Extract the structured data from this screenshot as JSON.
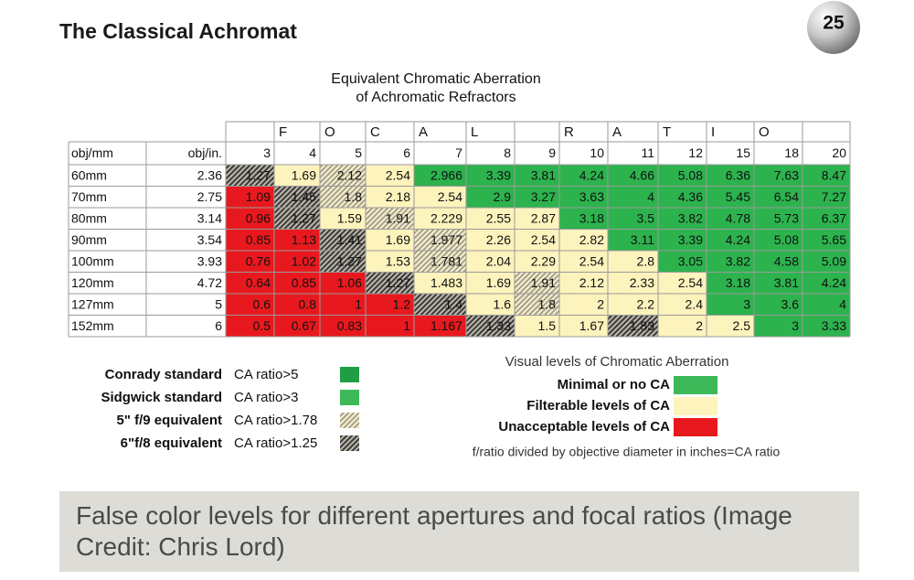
{
  "header": {
    "title": "The Classical Achromat",
    "page_number": "25"
  },
  "figure": {
    "title": [
      "Equivalent Chromatic Aberration",
      "of Achromatic Refractors"
    ],
    "focal_label": [
      null,
      "F",
      "O",
      "C",
      "A",
      "L",
      null,
      "R",
      "A",
      "T",
      "I",
      "O",
      null
    ],
    "column_headers": [
      "obj/mm",
      "obj/in.",
      "3",
      "4",
      "5",
      "6",
      "7",
      "8",
      "9",
      "10",
      "11",
      "12",
      "15",
      "18",
      "20"
    ],
    "rows": [
      [
        "60mm",
        "2.36",
        "1.27",
        "1.69",
        "2.12",
        "2.54",
        "2.966",
        "3.39",
        "3.81",
        "4.24",
        "4.66",
        "5.08",
        "6.36",
        "7.63",
        "8.47"
      ],
      [
        "70mm",
        "2.75",
        "1.09",
        "1.45",
        "1.8",
        "2.18",
        "2.54",
        "2.9",
        "3.27",
        "3.63",
        "4",
        "4.36",
        "5.45",
        "6.54",
        "7.27"
      ],
      [
        "80mm",
        "3.14",
        "0.96",
        "1.27",
        "1.59",
        "1.91",
        "2.229",
        "2.55",
        "2.87",
        "3.18",
        "3.5",
        "3.82",
        "4.78",
        "5.73",
        "6.37"
      ],
      [
        "90mm",
        "3.54",
        "0.85",
        "1.13",
        "1.41",
        "1.69",
        "1.977",
        "2.26",
        "2.54",
        "2.82",
        "3.11",
        "3.39",
        "4.24",
        "5.08",
        "5.65"
      ],
      [
        "100mm",
        "3.93",
        "0.76",
        "1.02",
        "1.27",
        "1.53",
        "1.781",
        "2.04",
        "2.29",
        "2.54",
        "2.8",
        "3.05",
        "3.82",
        "4.58",
        "5.09"
      ],
      [
        "120mm",
        "4.72",
        "0.64",
        "0.85",
        "1.06",
        "1.27",
        "1.483",
        "1.69",
        "1.91",
        "2.12",
        "2.33",
        "2.54",
        "3.18",
        "3.81",
        "4.24"
      ],
      [
        "127mm",
        "5",
        "0.6",
        "0.8",
        "1",
        "1.2",
        "1.4",
        "1.6",
        "1.8",
        "2",
        "2.2",
        "2.4",
        "3",
        "3.6",
        "4"
      ],
      [
        "152mm",
        "6",
        "0.5",
        "0.67",
        "0.83",
        "1",
        "1.167",
        "1.33",
        "1.5",
        "1.67",
        "1.83",
        "2",
        "2.5",
        "3",
        "3.33"
      ]
    ],
    "fills": [
      [
        "url(#hd)",
        "#fdf3bd",
        "url(#hl)",
        "#fdf3bd",
        "#2db34e",
        "#2db34e",
        "#2db34e",
        "#2db34e",
        "#2db34e",
        "#2db34e",
        "#2db34e",
        "#2db34e",
        "#2db34e"
      ],
      [
        "#e8191e",
        "url(#hd)",
        "url(#hl)",
        "#fdf3bd",
        "#fdf3bd",
        "#2db34e",
        "#2db34e",
        "#2db34e",
        "#2db34e",
        "#2db34e",
        "#2db34e",
        "#2db34e",
        "#2db34e"
      ],
      [
        "#e8191e",
        "url(#hd)",
        "#fdf3bd",
        "url(#hl)",
        "#fdf3bd",
        "#fdf3bd",
        "#fdf3bd",
        "#2db34e",
        "#2db34e",
        "#2db34e",
        "#2db34e",
        "#2db34e",
        "#2db34e"
      ],
      [
        "#e8191e",
        "#e8191e",
        "url(#hd)",
        "#fdf3bd",
        "url(#hl)",
        "#fdf3bd",
        "#fdf3bd",
        "#fdf3bd",
        "#2db34e",
        "#2db34e",
        "#2db34e",
        "#2db34e",
        "#2db34e"
      ],
      [
        "#e8191e",
        "#e8191e",
        "url(#hd)",
        "#fdf3bd",
        "url(#hl)",
        "#fdf3bd",
        "#fdf3bd",
        "#fdf3bd",
        "#fdf3bd",
        "#2db34e",
        "#2db34e",
        "#2db34e",
        "#2db34e"
      ],
      [
        "#e8191e",
        "#e8191e",
        "#e8191e",
        "url(#hd)",
        "#fdf3bd",
        "#fdf3bd",
        "url(#hl)",
        "#fdf3bd",
        "#fdf3bd",
        "#fdf3bd",
        "#2db34e",
        "#2db34e",
        "#2db34e"
      ],
      [
        "#e8191e",
        "#e8191e",
        "#e8191e",
        "#e8191e",
        "url(#hd)",
        "#fdf3bd",
        "url(#hl)",
        "#fdf3bd",
        "#fdf3bd",
        "#fdf3bd",
        "#2db34e",
        "#2db34e",
        "#2db34e"
      ],
      [
        "#e8191e",
        "#e8191e",
        "#e8191e",
        "#e8191e",
        "#e8191e",
        "url(#hd)",
        "#fdf3bd",
        "#fdf3bd",
        "url(#hd)",
        "#fdf3bd",
        "#fdf3bd",
        "#2db34e",
        "#2db34e"
      ]
    ]
  },
  "legend": {
    "standards": [
      {
        "name": "Conrady standard",
        "rule": "CA ratio>5",
        "fill": "#1f9e45"
      },
      {
        "name": "Sidgwick standard",
        "rule": "CA ratio>3",
        "fill": "#3db95a"
      },
      {
        "name": "5\" f/9  equivalent",
        "rule": "CA ratio>1.78",
        "fill": "url(#hl)"
      },
      {
        "name": "6\"f/8 equivalent",
        "rule": "CA ratio>1.25",
        "fill": "url(#hd)"
      }
    ],
    "levels_title": "Visual levels of Chromatic Aberration",
    "levels": [
      {
        "label": "Minimal or no CA",
        "fill": "#3db95a"
      },
      {
        "label": "Filterable levels of CA",
        "fill": "#fdf3bd"
      },
      {
        "label": "Unacceptable levels of CA",
        "fill": "#e8191e"
      }
    ],
    "note": "f/ratio divided by objective diameter in inches=CA ratio"
  },
  "caption": "False color levels for different apertures and focal ratios (Image Credit: Chris Lord)"
}
